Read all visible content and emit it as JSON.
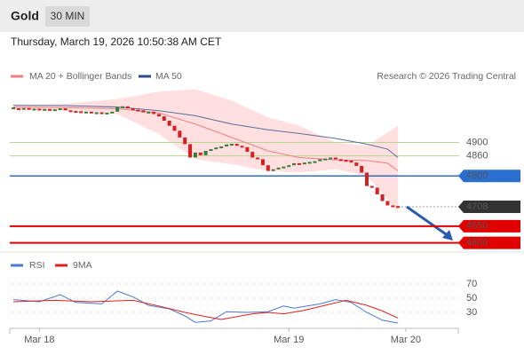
{
  "header": {
    "title": "Gold",
    "timeframe": "30 MIN",
    "datetime": "Thursday, March 19, 2026 10:50:38 AM CET"
  },
  "chart_data": {
    "type": "candlestick",
    "source": "Research © 2026 Trading Central",
    "xlim": [
      -0.7,
      85.6
    ],
    "xticks": [
      {
        "value": 5,
        "label": "Mar 18"
      },
      {
        "value": 53,
        "label": "Mar 19"
      },
      {
        "value": 75.5,
        "label": "Mar 20"
      }
    ],
    "ylim": [
      4570,
      5140
    ],
    "up_color": "#3a7d3a",
    "down_color": "#d42020",
    "close": [
      5002,
      5000,
      5003,
      4999,
      5001,
      4998,
      5000,
      4997,
      4999,
      5002,
      4996,
      4994,
      4993,
      4990,
      4992,
      4988,
      4990,
      4986,
      4989,
      4992,
      5005,
      5008,
      5002,
      4998,
      4996,
      4990,
      4992,
      4985,
      4978,
      4965,
      4950,
      4935,
      4915,
      4895,
      4855,
      4870,
      4862,
      4875,
      4880,
      4885,
      4888,
      4894,
      4896,
      4890,
      4886,
      4872,
      4855,
      4850,
      4832,
      4815,
      4820,
      4825,
      4828,
      4832,
      4838,
      4835,
      4840,
      4842,
      4844,
      4850,
      4852,
      4855,
      4850,
      4848,
      4846,
      4840,
      4830,
      4810,
      4770,
      4765,
      4745,
      4725,
      4712,
      4710,
      4708
    ],
    "band_x": [
      0,
      10,
      20,
      28,
      35,
      42,
      49,
      55,
      62,
      68,
      72,
      74
    ],
    "series": [
      {
        "name": "MA 20 + Bollinger Bands",
        "color": "#f08080",
        "values": [
          5006,
          5004,
          5001,
          4988,
          4955,
          4915,
          4875,
          4855,
          4848,
          4846,
          4838,
          4815
        ]
      },
      {
        "name": "MA 50",
        "color": "#5a6fa0",
        "values": [
          5011,
          5010,
          5006,
          4995,
          4980,
          4955,
          4938,
          4927,
          4912,
          4895,
          4880,
          4855
        ]
      }
    ],
    "band_upper": [
      5011,
      5015,
      5030,
      5052,
      5059,
      5025,
      4975,
      4950,
      4900,
      4890,
      4930,
      4950
    ],
    "band_lower": [
      4998,
      4995,
      4985,
      4925,
      4850,
      4835,
      4815,
      4810,
      4820,
      4800,
      4730,
      4690
    ],
    "band_color": "#ffb0b0",
    "levels": [
      {
        "value": 4900,
        "color": "#b5d48f",
        "text_color": "#8bb34a",
        "box": false,
        "dash": false
      },
      {
        "value": 4860,
        "color": "#b5d48f",
        "text_color": "#8bb34a",
        "box": false,
        "dash": false
      },
      {
        "value": 4800,
        "color": "#2a6fd0",
        "text_color": "#ffffff",
        "box": true,
        "dash": false
      },
      {
        "value": 4708,
        "color": "#999999",
        "text_color": "#ffffff",
        "box": true,
        "box_color": "#333333",
        "dash": true
      },
      {
        "value": 4650,
        "color": "#e00000",
        "text_color": "#ffffff",
        "box": true,
        "dash": false
      },
      {
        "value": 4600,
        "color": "#e00000",
        "text_color": "#ffffff",
        "box": true,
        "dash": false
      }
    ],
    "rsi": {
      "ylim": [
        7.5,
        82.5
      ],
      "yticks": [
        70,
        50,
        30
      ],
      "series": [
        {
          "name": "RSI",
          "color": "#4a78d0",
          "x": [
            0,
            5,
            9,
            12,
            17,
            20,
            23,
            26,
            30,
            33,
            35,
            38,
            41,
            45,
            49,
            52,
            54,
            59,
            62,
            65,
            68,
            71,
            74
          ],
          "values": [
            48,
            45,
            55,
            44,
            42,
            60,
            52,
            40,
            35,
            25,
            16,
            18,
            31,
            30,
            31,
            39,
            36,
            42,
            48,
            44,
            30,
            19,
            15
          ]
        },
        {
          "name": "9MA",
          "color": "#e02020",
          "x": [
            0,
            8,
            15,
            23,
            28,
            33,
            37,
            40,
            46,
            49,
            52,
            56,
            60,
            64,
            68,
            71,
            74
          ],
          "values": [
            45,
            47,
            45,
            47,
            39,
            30,
            24,
            20,
            28,
            30,
            28,
            33,
            40,
            47,
            40,
            32,
            22
          ]
        }
      ]
    }
  }
}
